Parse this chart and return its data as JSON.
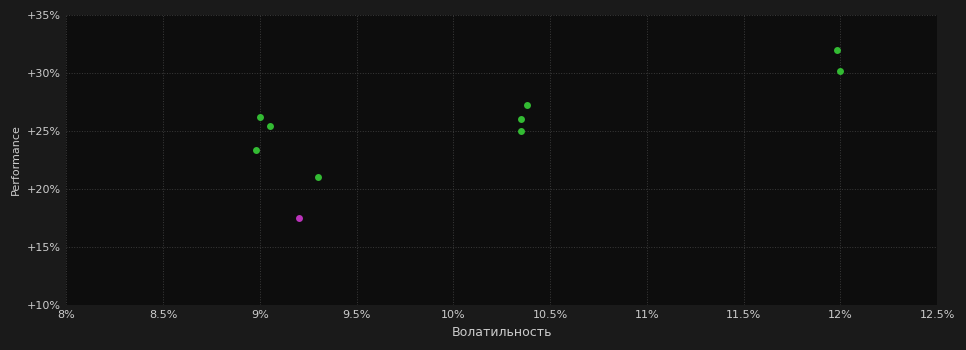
{
  "background_color": "#1a1a1a",
  "plot_bg_color": "#0d0d0d",
  "grid_color": "#3a3a3a",
  "text_color": "#cccccc",
  "xlabel": "Волатильность",
  "ylabel": "Performance",
  "xlim": [
    0.08,
    0.125
  ],
  "ylim": [
    0.1,
    0.35
  ],
  "xticks": [
    0.08,
    0.085,
    0.09,
    0.095,
    0.1,
    0.105,
    0.11,
    0.115,
    0.12,
    0.125
  ],
  "yticks": [
    0.1,
    0.15,
    0.2,
    0.25,
    0.3,
    0.35
  ],
  "green_points": [
    [
      0.09,
      0.262
    ],
    [
      0.0905,
      0.254
    ],
    [
      0.0898,
      0.234
    ],
    [
      0.093,
      0.21
    ],
    [
      0.1038,
      0.272
    ],
    [
      0.1035,
      0.26
    ],
    [
      0.1035,
      0.25
    ],
    [
      0.1198,
      0.32
    ],
    [
      0.12,
      0.302
    ]
  ],
  "magenta_points": [
    [
      0.092,
      0.175
    ]
  ],
  "green_color": "#33bb33",
  "magenta_color": "#bb33bb",
  "marker_size": 5
}
